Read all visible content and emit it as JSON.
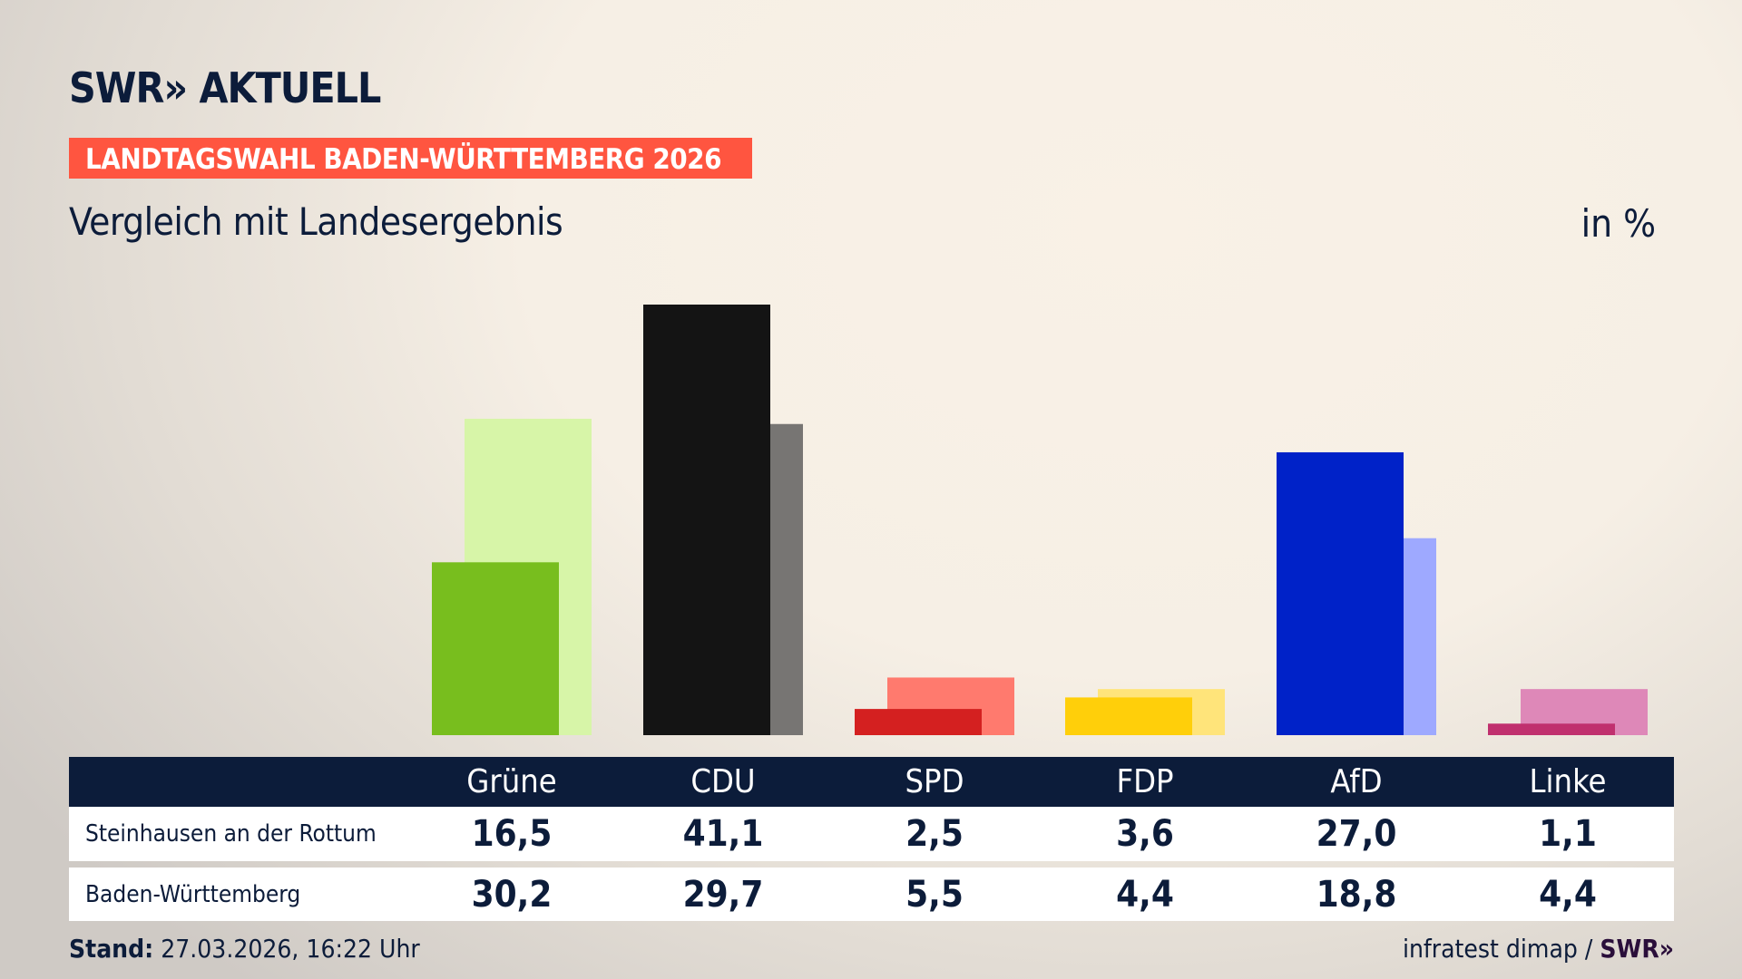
{
  "header": {
    "logo": "SWR» AKTUELL",
    "banner": "LANDTAGSWAHL BADEN-WÜRTTEMBERG 2026",
    "subtitle": "Vergleich mit Landesergebnis",
    "unit": "in %"
  },
  "footer": {
    "stand_label": "Stand:",
    "stand_value": "27.03.2026, 16:22 Uhr",
    "source": "infratest dimap /",
    "source_logo": "SWR»"
  },
  "chart_data": {
    "type": "bar",
    "title": "Vergleich mit Landesergebnis",
    "ylabel": "in %",
    "ylim": [
      0,
      41.1
    ],
    "categories": [
      "Grüne",
      "CDU",
      "SPD",
      "FDP",
      "AfD",
      "Linke"
    ],
    "series": [
      {
        "name": "Steinhausen an der Rottum",
        "values": [
          16.5,
          41.1,
          2.5,
          3.6,
          27.0,
          1.1
        ],
        "labels": [
          "16,5",
          "41,1",
          "2,5",
          "3,6",
          "27,0",
          "1,1"
        ],
        "colors": [
          "#78be1e",
          "#141414",
          "#d42020",
          "#ffcf0a",
          "#0022c8",
          "#c0306e"
        ]
      },
      {
        "name": "Baden-Württemberg",
        "values": [
          30.2,
          29.7,
          5.5,
          4.4,
          18.8,
          4.4
        ],
        "labels": [
          "30,2",
          "29,7",
          "5,5",
          "4,4",
          "18,8",
          "4,4"
        ],
        "colors": [
          "#d7f5a8",
          "#777573",
          "#ff7a6e",
          "#ffe47a",
          "#9ea9ff",
          "#de88b8"
        ]
      }
    ]
  }
}
